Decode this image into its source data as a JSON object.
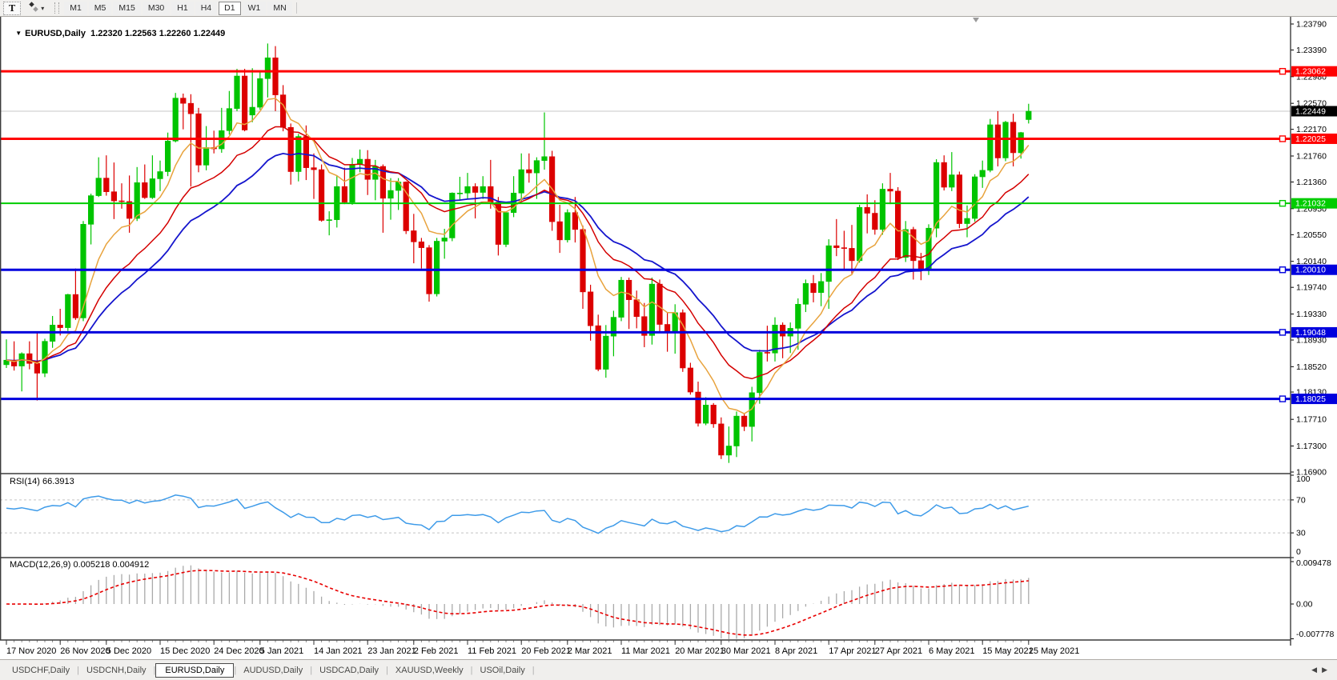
{
  "icons": {
    "text_tool": "T",
    "dropdown_caret": "▾",
    "title_dropdown": "▼",
    "tab_scroll_left": "◀",
    "tab_scroll_right": "▶"
  },
  "toolbar": {
    "timeframes": [
      {
        "label": "M1",
        "active": false
      },
      {
        "label": "M5",
        "active": false
      },
      {
        "label": "M15",
        "active": false
      },
      {
        "label": "M30",
        "active": false
      },
      {
        "label": "H1",
        "active": false
      },
      {
        "label": "H4",
        "active": false
      },
      {
        "label": "D1",
        "active": true
      },
      {
        "label": "W1",
        "active": false
      },
      {
        "label": "MN",
        "active": false
      }
    ]
  },
  "title": {
    "symbol": "EURUSD,Daily",
    "ohlc_text": "1.22320 1.22563 1.22260 1.22449"
  },
  "colors": {
    "candle_up": "#00C400",
    "candle_down": "#DC0000",
    "ma_fast": "#E8A33D",
    "ma_medium": "#D40000",
    "ma_slow": "#1515CD",
    "sr_red": "#FF0000",
    "sr_green": "#00CC00",
    "sr_blue": "#0000DD",
    "current_line": "#C8C8C8",
    "current_label_bg": "#000000",
    "rsi_line": "#3E9BE9",
    "rsi_level": "#C4C4C4",
    "macd_hist": "#A9A9A9",
    "macd_signal": "#E80000",
    "border": "#3C3C3C"
  },
  "price_axis": {
    "ticks": [
      "1.23790",
      "1.23390",
      "1.22980",
      "1.22570",
      "1.22170",
      "1.21760",
      "1.21360",
      "1.20950",
      "1.20550",
      "1.20140",
      "1.19740",
      "1.19330",
      "1.18930",
      "1.18520",
      "1.18130",
      "1.17710",
      "1.17300",
      "1.16900"
    ],
    "tick_values": [
      1.2379,
      1.2339,
      1.2298,
      1.2257,
      1.2217,
      1.2176,
      1.2136,
      1.2095,
      1.2055,
      1.2014,
      1.1974,
      1.1933,
      1.1893,
      1.1852,
      1.1813,
      1.1771,
      1.173,
      1.169
    ]
  },
  "sr_lines": [
    {
      "label": "1.23062",
      "value": 1.23062,
      "color": "#FF0000",
      "width": 3
    },
    {
      "label": "1.22025",
      "value": 1.22025,
      "color": "#FF0000",
      "width": 3
    },
    {
      "label": "1.21032",
      "value": 1.21032,
      "color": "#00CC00",
      "width": 2
    },
    {
      "label": "1.20010",
      "value": 1.2001,
      "color": "#0000DD",
      "width": 3
    },
    {
      "label": "1.19048",
      "value": 1.19048,
      "color": "#0000DD",
      "width": 3
    },
    {
      "label": "1.18025",
      "value": 1.18025,
      "color": "#0000DD",
      "width": 3
    }
  ],
  "current_price": {
    "label": "1.22449",
    "value": 1.22449
  },
  "rsi": {
    "label": "RSI(14) 66.3913",
    "period": 14,
    "value": 66.3913,
    "axis_labels": [
      "100",
      "70",
      "30",
      "0"
    ],
    "axis_values": [
      100,
      70,
      30,
      0
    ],
    "levels": [
      70,
      30
    ]
  },
  "macd": {
    "label": "MACD(12,26,9) 0.005218 0.004912",
    "fast": 12,
    "slow": 26,
    "signal_period": 9,
    "macd_value": 0.005218,
    "signal_value": 0.004912,
    "axis_labels": [
      "0.009478",
      "0.00",
      "-0.007778"
    ],
    "axis_values": [
      0.009478,
      0,
      -0.007778
    ]
  },
  "time_axis": {
    "labels": [
      "17 Nov 2020",
      "26 Nov 2020",
      "5 Dec 2020",
      "15 Dec 2020",
      "24 Dec 2020",
      "5 Jan 2021",
      "14 Jan 2021",
      "23 Jan 2021",
      "2 Feb 2021",
      "11 Feb 2021",
      "20 Feb 2021",
      "2 Mar 2021",
      "11 Mar 2021",
      "20 Mar 2021",
      "30 Mar 2021",
      "8 Apr 2021",
      "17 Apr 2021",
      "27 Apr 2021",
      "6 May 2021",
      "15 May 2021",
      "25 May 2021"
    ],
    "tick_indices": [
      0,
      7,
      13,
      20,
      27,
      33,
      40,
      47,
      53,
      60,
      67,
      73,
      80,
      87,
      93,
      100,
      107,
      113,
      120,
      127,
      133
    ]
  },
  "tabs": {
    "items": [
      "USDCHF,Daily",
      "USDCNH,Daily",
      "EURUSD,Daily",
      "AUDUSD,Daily",
      "USDCAD,Daily",
      "XAUUSD,Weekly",
      "USOil,Daily"
    ],
    "active_index": 2
  },
  "chart_data": {
    "type": "candlestick",
    "symbol": "EURUSD",
    "timeframe": "Daily",
    "title": "EURUSD,Daily 1.22320 1.22563 1.22260 1.22449",
    "y_axis_ticks": [
      1.2379,
      1.2339,
      1.2298,
      1.2257,
      1.2217,
      1.2176,
      1.2136,
      1.2095,
      1.2055,
      1.2014,
      1.1974,
      1.1933,
      1.1893,
      1.1852,
      1.1813,
      1.1771,
      1.173,
      1.169
    ],
    "x_tick_labels": [
      "17 Nov 2020",
      "26 Nov 2020",
      "5 Dec 2020",
      "15 Dec 2020",
      "24 Dec 2020",
      "5 Jan 2021",
      "14 Jan 2021",
      "23 Jan 2021",
      "2 Feb 2021",
      "11 Feb 2021",
      "20 Feb 2021",
      "2 Mar 2021",
      "11 Mar 2021",
      "20 Mar 2021",
      "30 Mar 2021",
      "8 Apr 2021",
      "17 Apr 2021",
      "27 Apr 2021",
      "6 May 2021",
      "15 May 2021",
      "25 May 2021"
    ],
    "horizontal_lines": [
      1.23062,
      1.22025,
      1.21032,
      1.2001,
      1.19048,
      1.18025
    ],
    "last_price": 1.22449,
    "ohlc": [
      [
        1.1855,
        1.1894,
        1.185,
        1.1862
      ],
      [
        1.1862,
        1.1891,
        1.1846,
        1.1853
      ],
      [
        1.1853,
        1.1874,
        1.1814,
        1.1872
      ],
      [
        1.1872,
        1.1891,
        1.1848,
        1.1857
      ],
      [
        1.1857,
        1.1906,
        1.18,
        1.1842
      ],
      [
        1.1842,
        1.1895,
        1.1836,
        1.1891
      ],
      [
        1.1891,
        1.193,
        1.1881,
        1.1916
      ],
      [
        1.1916,
        1.1941,
        1.19,
        1.1912
      ],
      [
        1.1912,
        1.1964,
        1.1907,
        1.1963
      ],
      [
        1.1963,
        1.2003,
        1.1924,
        1.1927
      ],
      [
        1.1927,
        1.2076,
        1.1922,
        1.2071
      ],
      [
        1.2071,
        1.2118,
        1.204,
        1.2115
      ],
      [
        1.2115,
        1.2174,
        1.2113,
        1.2142
      ],
      [
        1.2142,
        1.2177,
        1.2115,
        1.2121
      ],
      [
        1.2121,
        1.2166,
        1.2079,
        1.2107
      ],
      [
        1.2107,
        1.2134,
        1.2095,
        1.2106
      ],
      [
        1.2106,
        1.2146,
        1.2058,
        1.208
      ],
      [
        1.208,
        1.2159,
        1.2076,
        1.2135
      ],
      [
        1.2135,
        1.2163,
        1.211,
        1.2112
      ],
      [
        1.2112,
        1.2177,
        1.211,
        1.2141
      ],
      [
        1.2141,
        1.2169,
        1.2122,
        1.2152
      ],
      [
        1.2152,
        1.2212,
        1.2145,
        1.2199
      ],
      [
        1.2199,
        1.2273,
        1.2197,
        1.2265
      ],
      [
        1.2265,
        1.2272,
        1.2217,
        1.2257
      ],
      [
        1.2257,
        1.2271,
        1.2129,
        1.2241
      ],
      [
        1.2241,
        1.225,
        1.2151,
        1.2162
      ],
      [
        1.2162,
        1.2222,
        1.2154,
        1.2189
      ],
      [
        1.2189,
        1.2215,
        1.218,
        1.2187
      ],
      [
        1.2187,
        1.225,
        1.2181,
        1.2215
      ],
      [
        1.2215,
        1.2276,
        1.2209,
        1.2249
      ],
      [
        1.2249,
        1.231,
        1.2245,
        1.2299
      ],
      [
        1.2299,
        1.231,
        1.2214,
        1.2216
      ],
      [
        1.2239,
        1.2311,
        1.2228,
        1.2251
      ],
      [
        1.2251,
        1.2307,
        1.2247,
        1.2295
      ],
      [
        1.2295,
        1.2349,
        1.2266,
        1.2327
      ],
      [
        1.2327,
        1.2345,
        1.2245,
        1.227
      ],
      [
        1.227,
        1.2285,
        1.2214,
        1.222
      ],
      [
        1.222,
        1.2226,
        1.2132,
        1.2152
      ],
      [
        1.2152,
        1.221,
        1.2137,
        1.2206
      ],
      [
        1.2206,
        1.2223,
        1.2139,
        1.2158
      ],
      [
        1.2158,
        1.218,
        1.211,
        1.2155
      ],
      [
        1.2155,
        1.2163,
        1.2075,
        1.2077
      ],
      [
        1.2077,
        1.2091,
        1.2054,
        1.2078
      ],
      [
        1.2078,
        1.2145,
        1.2066,
        1.2129
      ],
      [
        1.2129,
        1.2158,
        1.2102,
        1.2105
      ],
      [
        1.2105,
        1.2173,
        1.2101,
        1.2163
      ],
      [
        1.2163,
        1.2186,
        1.2151,
        1.2171
      ],
      [
        1.2171,
        1.2185,
        1.2116,
        1.214
      ],
      [
        1.214,
        1.217,
        1.2108,
        1.216
      ],
      [
        1.216,
        1.2163,
        1.2058,
        1.2111
      ],
      [
        1.2111,
        1.2142,
        1.2078,
        1.2123
      ],
      [
        1.2123,
        1.2142,
        1.2093,
        1.2136
      ],
      [
        1.2136,
        1.2137,
        1.2056,
        1.2061
      ],
      [
        1.2061,
        1.2087,
        1.2011,
        1.2044
      ],
      [
        1.2044,
        1.205,
        1.2003,
        1.2035
      ],
      [
        1.2035,
        1.2039,
        1.1952,
        1.1964
      ],
      [
        1.1964,
        1.205,
        1.196,
        1.2045
      ],
      [
        1.2045,
        1.2064,
        1.2018,
        1.205
      ],
      [
        1.205,
        1.212,
        1.2045,
        1.2119
      ],
      [
        1.2119,
        1.2144,
        1.2109,
        1.2119
      ],
      [
        1.2119,
        1.215,
        1.2109,
        1.2129
      ],
      [
        1.2129,
        1.2134,
        1.208,
        1.212
      ],
      [
        1.212,
        1.2145,
        1.211,
        1.2129
      ],
      [
        1.2129,
        1.217,
        1.2095,
        1.2105
      ],
      [
        1.2105,
        1.2113,
        1.2023,
        1.204
      ],
      [
        1.204,
        1.209,
        1.2036,
        1.2089
      ],
      [
        1.2089,
        1.2145,
        1.2082,
        1.2119
      ],
      [
        1.2119,
        1.218,
        1.2107,
        1.2155
      ],
      [
        1.2155,
        1.218,
        1.2135,
        1.215
      ],
      [
        1.215,
        1.2174,
        1.211,
        1.2169
      ],
      [
        1.2169,
        1.2243,
        1.2155,
        1.2175
      ],
      [
        1.2175,
        1.2184,
        1.2061,
        1.2075
      ],
      [
        1.2075,
        1.2101,
        1.2027,
        1.2047
      ],
      [
        1.2047,
        1.2094,
        1.2043,
        1.2089
      ],
      [
        1.2089,
        1.2113,
        1.2043,
        1.2063
      ],
      [
        1.2063,
        1.2069,
        1.1941,
        1.1967
      ],
      [
        1.1967,
        1.1978,
        1.1892,
        1.1915
      ],
      [
        1.1915,
        1.1932,
        1.1845,
        1.1848
      ],
      [
        1.1848,
        1.1916,
        1.1835,
        1.1899
      ],
      [
        1.1899,
        1.1938,
        1.1868,
        1.1928
      ],
      [
        1.1928,
        1.199,
        1.1922,
        1.1985
      ],
      [
        1.1985,
        1.1989,
        1.191,
        1.1955
      ],
      [
        1.1955,
        1.1969,
        1.1911,
        1.1929
      ],
      [
        1.1929,
        1.195,
        1.1882,
        1.19
      ],
      [
        1.19,
        1.1989,
        1.1886,
        1.1979
      ],
      [
        1.1979,
        1.1986,
        1.1906,
        1.1917
      ],
      [
        1.1917,
        1.1935,
        1.1875,
        1.1905
      ],
      [
        1.1905,
        1.1948,
        1.1872,
        1.1935
      ],
      [
        1.1935,
        1.194,
        1.1844,
        1.185
      ],
      [
        1.185,
        1.1858,
        1.1809,
        1.1813
      ],
      [
        1.1813,
        1.1829,
        1.176,
        1.1765
      ],
      [
        1.1765,
        1.1805,
        1.1762,
        1.1793
      ],
      [
        1.1793,
        1.1796,
        1.1758,
        1.1764
      ],
      [
        1.1764,
        1.1774,
        1.171,
        1.1716
      ],
      [
        1.1716,
        1.176,
        1.1704,
        1.173
      ],
      [
        1.173,
        1.1783,
        1.1713,
        1.1776
      ],
      [
        1.1776,
        1.178,
        1.1753,
        1.176
      ],
      [
        1.176,
        1.1821,
        1.1737,
        1.1812
      ],
      [
        1.1812,
        1.1878,
        1.1795,
        1.1874
      ],
      [
        1.1874,
        1.1915,
        1.186,
        1.1873
      ],
      [
        1.1873,
        1.1928,
        1.186,
        1.1916
      ],
      [
        1.1916,
        1.192,
        1.1865,
        1.1899
      ],
      [
        1.1899,
        1.192,
        1.1873,
        1.1911
      ],
      [
        1.1911,
        1.1957,
        1.1878,
        1.1948
      ],
      [
        1.1948,
        1.1986,
        1.1936,
        1.198
      ],
      [
        1.198,
        1.1993,
        1.1951,
        1.1966
      ],
      [
        1.1966,
        1.1996,
        1.1945,
        1.1983
      ],
      [
        1.1983,
        1.2048,
        1.1941,
        1.2038
      ],
      [
        1.2038,
        1.2079,
        1.2022,
        1.2035
      ],
      [
        1.2035,
        1.2061,
        1.2001,
        1.2034
      ],
      [
        1.2034,
        1.207,
        1.1995,
        1.2015
      ],
      [
        1.2015,
        1.2101,
        1.2012,
        1.2097
      ],
      [
        1.2097,
        1.2117,
        1.2057,
        1.2088
      ],
      [
        1.2088,
        1.2108,
        1.2055,
        1.2063
      ],
      [
        1.2063,
        1.2134,
        1.2055,
        1.2125
      ],
      [
        1.2125,
        1.215,
        1.2102,
        1.2122
      ],
      [
        1.2122,
        1.2128,
        1.2016,
        1.202
      ],
      [
        1.202,
        1.2076,
        1.2013,
        1.2063
      ],
      [
        1.2063,
        1.2067,
        1.1986,
        1.2015
      ],
      [
        1.2015,
        1.2027,
        1.1985,
        1.2003
      ],
      [
        1.2003,
        1.2071,
        1.1993,
        1.2065
      ],
      [
        1.2065,
        1.2171,
        1.2051,
        1.2166
      ],
      [
        1.2166,
        1.2177,
        1.2123,
        1.2128
      ],
      [
        1.2128,
        1.2182,
        1.2122,
        1.2147
      ],
      [
        1.2147,
        1.2152,
        1.2065,
        1.2072
      ],
      [
        1.2072,
        1.21,
        1.2051,
        1.208
      ],
      [
        1.208,
        1.2148,
        1.2075,
        1.2144
      ],
      [
        1.2144,
        1.2169,
        1.2127,
        1.2154
      ],
      [
        1.2154,
        1.2233,
        1.2151,
        1.2224
      ],
      [
        1.2224,
        1.2245,
        1.216,
        1.2173
      ],
      [
        1.2173,
        1.223,
        1.2168,
        1.2228
      ],
      [
        1.2228,
        1.2241,
        1.216,
        1.2181
      ],
      [
        1.2181,
        1.2213,
        1.2172,
        1.2212
      ],
      [
        1.2232,
        1.22563,
        1.2226,
        1.22449
      ]
    ],
    "indicators": {
      "rsi": {
        "name": "RSI",
        "period": 14,
        "current": 66.3913,
        "levels": [
          70,
          30
        ],
        "axis": [
          100,
          70,
          30,
          0
        ]
      },
      "macd": {
        "name": "MACD",
        "fast": 12,
        "slow": 26,
        "signal": 9,
        "macd_current": 0.005218,
        "signal_current": 0.004912,
        "axis_max": 0.009478,
        "axis_min": -0.007778
      }
    }
  }
}
